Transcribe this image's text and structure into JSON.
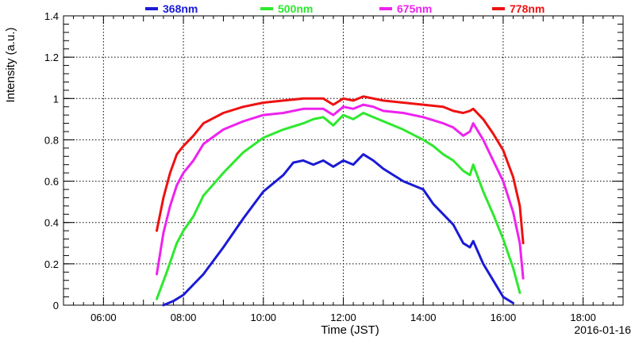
{
  "chart_data": {
    "type": "line",
    "title": "",
    "xlabel": "Time (JST)",
    "ylabel": "Intensity (a.u.)",
    "date_label": "2016-01-16",
    "xlim": [
      "05:00",
      "19:00"
    ],
    "ylim": [
      0,
      1.4
    ],
    "x_ticks": [
      "06:00",
      "08:00",
      "10:00",
      "12:00",
      "14:00",
      "16:00",
      "18:00"
    ],
    "y_ticks": [
      "0",
      "0.2",
      "0.4",
      "0.6",
      "0.8",
      "1",
      "1.2",
      "1.4"
    ],
    "grid": true,
    "legend_position": "top",
    "series": [
      {
        "name": "368nm",
        "color": "#1a1ad6",
        "points": [
          [
            "07:30",
            0.0
          ],
          [
            "07:45",
            0.02
          ],
          [
            "08:00",
            0.05
          ],
          [
            "08:30",
            0.15
          ],
          [
            "09:00",
            0.28
          ],
          [
            "09:30",
            0.42
          ],
          [
            "10:00",
            0.55
          ],
          [
            "10:30",
            0.63
          ],
          [
            "10:45",
            0.69
          ],
          [
            "11:00",
            0.7
          ],
          [
            "11:15",
            0.68
          ],
          [
            "11:30",
            0.7
          ],
          [
            "11:45",
            0.67
          ],
          [
            "12:00",
            0.7
          ],
          [
            "12:15",
            0.68
          ],
          [
            "12:30",
            0.73
          ],
          [
            "12:45",
            0.7
          ],
          [
            "13:00",
            0.66
          ],
          [
            "13:30",
            0.6
          ],
          [
            "14:00",
            0.56
          ],
          [
            "14:15",
            0.49
          ],
          [
            "14:30",
            0.44
          ],
          [
            "14:45",
            0.39
          ],
          [
            "15:00",
            0.3
          ],
          [
            "15:10",
            0.28
          ],
          [
            "15:15",
            0.31
          ],
          [
            "15:30",
            0.2
          ],
          [
            "15:45",
            0.12
          ],
          [
            "16:00",
            0.04
          ],
          [
            "16:15",
            0.01
          ]
        ]
      },
      {
        "name": "500nm",
        "color": "#2ee82e",
        "points": [
          [
            "07:20",
            0.03
          ],
          [
            "07:35",
            0.16
          ],
          [
            "07:50",
            0.3
          ],
          [
            "08:00",
            0.36
          ],
          [
            "08:15",
            0.43
          ],
          [
            "08:30",
            0.53
          ],
          [
            "09:00",
            0.64
          ],
          [
            "09:30",
            0.74
          ],
          [
            "10:00",
            0.81
          ],
          [
            "10:30",
            0.85
          ],
          [
            "11:00",
            0.88
          ],
          [
            "11:15",
            0.9
          ],
          [
            "11:30",
            0.91
          ],
          [
            "11:45",
            0.87
          ],
          [
            "12:00",
            0.92
          ],
          [
            "12:15",
            0.9
          ],
          [
            "12:30",
            0.93
          ],
          [
            "12:45",
            0.91
          ],
          [
            "13:00",
            0.89
          ],
          [
            "13:30",
            0.85
          ],
          [
            "14:00",
            0.8
          ],
          [
            "14:15",
            0.77
          ],
          [
            "14:30",
            0.73
          ],
          [
            "14:45",
            0.7
          ],
          [
            "15:00",
            0.65
          ],
          [
            "15:10",
            0.63
          ],
          [
            "15:15",
            0.68
          ],
          [
            "15:30",
            0.55
          ],
          [
            "15:45",
            0.44
          ],
          [
            "16:00",
            0.32
          ],
          [
            "16:15",
            0.18
          ],
          [
            "16:25",
            0.06
          ]
        ]
      },
      {
        "name": "675nm",
        "color": "#ee22ee",
        "points": [
          [
            "07:20",
            0.15
          ],
          [
            "07:30",
            0.35
          ],
          [
            "07:40",
            0.48
          ],
          [
            "07:50",
            0.58
          ],
          [
            "08:00",
            0.64
          ],
          [
            "08:15",
            0.7
          ],
          [
            "08:30",
            0.78
          ],
          [
            "09:00",
            0.85
          ],
          [
            "09:30",
            0.89
          ],
          [
            "10:00",
            0.92
          ],
          [
            "10:30",
            0.93
          ],
          [
            "11:00",
            0.95
          ],
          [
            "11:30",
            0.95
          ],
          [
            "11:45",
            0.92
          ],
          [
            "12:00",
            0.96
          ],
          [
            "12:15",
            0.95
          ],
          [
            "12:30",
            0.97
          ],
          [
            "12:45",
            0.96
          ],
          [
            "13:00",
            0.94
          ],
          [
            "13:30",
            0.93
          ],
          [
            "14:00",
            0.91
          ],
          [
            "14:30",
            0.88
          ],
          [
            "14:45",
            0.86
          ],
          [
            "15:00",
            0.82
          ],
          [
            "15:10",
            0.84
          ],
          [
            "15:15",
            0.88
          ],
          [
            "15:30",
            0.8
          ],
          [
            "15:45",
            0.7
          ],
          [
            "16:00",
            0.6
          ],
          [
            "16:15",
            0.45
          ],
          [
            "16:25",
            0.3
          ],
          [
            "16:30",
            0.13
          ]
        ]
      },
      {
        "name": "778nm",
        "color": "#ee1111",
        "points": [
          [
            "07:20",
            0.36
          ],
          [
            "07:30",
            0.52
          ],
          [
            "07:40",
            0.64
          ],
          [
            "07:50",
            0.73
          ],
          [
            "08:00",
            0.77
          ],
          [
            "08:15",
            0.82
          ],
          [
            "08:30",
            0.88
          ],
          [
            "09:00",
            0.93
          ],
          [
            "09:30",
            0.96
          ],
          [
            "10:00",
            0.98
          ],
          [
            "10:30",
            0.99
          ],
          [
            "11:00",
            1.0
          ],
          [
            "11:30",
            1.0
          ],
          [
            "11:45",
            0.97
          ],
          [
            "12:00",
            1.0
          ],
          [
            "12:15",
            0.99
          ],
          [
            "12:30",
            1.01
          ],
          [
            "13:00",
            0.99
          ],
          [
            "13:30",
            0.98
          ],
          [
            "14:00",
            0.97
          ],
          [
            "14:30",
            0.96
          ],
          [
            "14:45",
            0.94
          ],
          [
            "15:00",
            0.93
          ],
          [
            "15:10",
            0.94
          ],
          [
            "15:15",
            0.95
          ],
          [
            "15:30",
            0.9
          ],
          [
            "15:45",
            0.83
          ],
          [
            "16:00",
            0.75
          ],
          [
            "16:15",
            0.62
          ],
          [
            "16:25",
            0.48
          ],
          [
            "16:30",
            0.3
          ]
        ]
      }
    ]
  }
}
